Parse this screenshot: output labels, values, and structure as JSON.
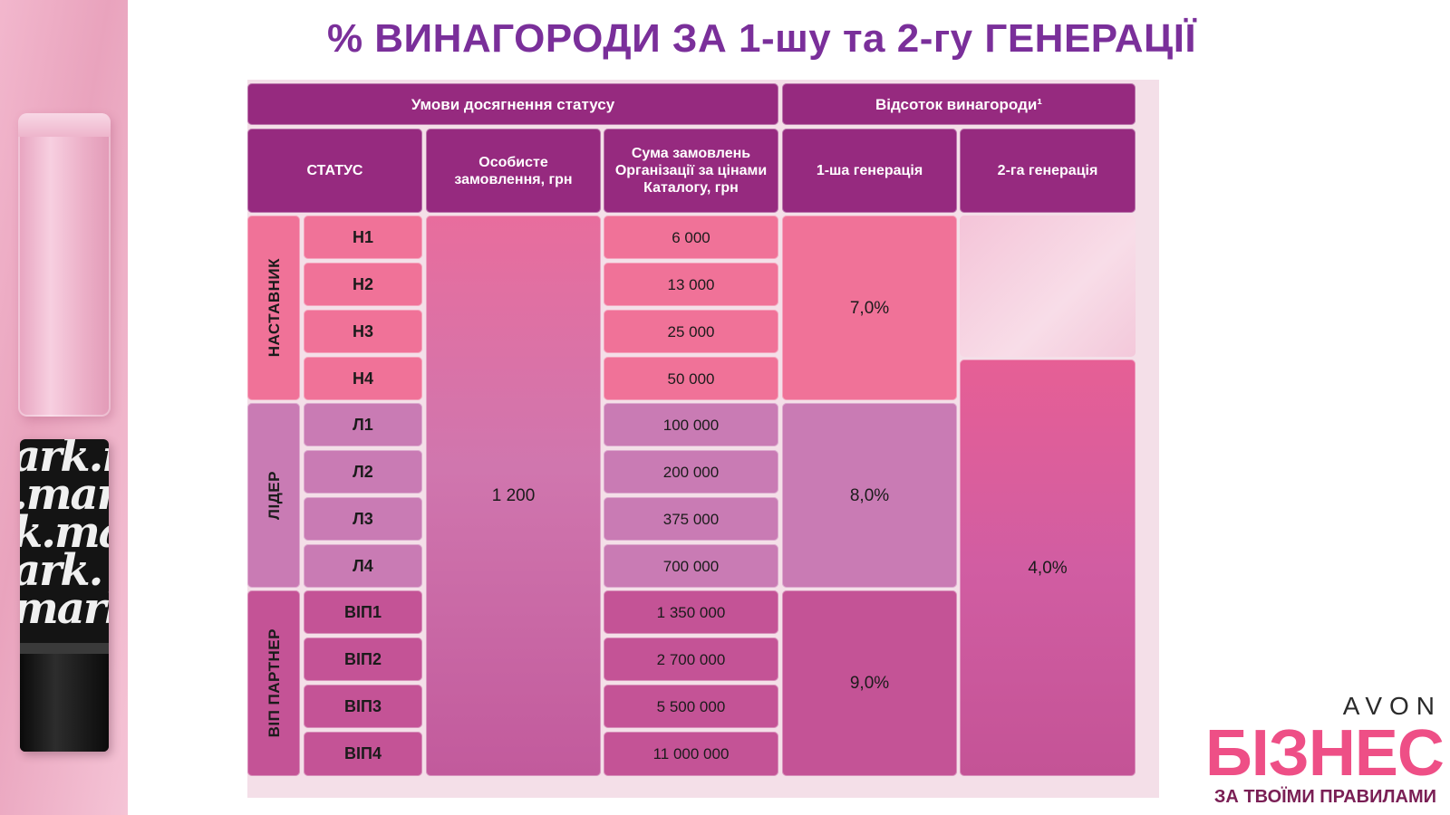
{
  "title": "% ВИНАГОРОДИ ЗА 1-шу та 2-гу ГЕНЕРАЦІЇ",
  "header": {
    "conditions": "Умови досягнення статусу",
    "reward_percent": "Відсоток винагороди¹",
    "status": "СТАТУС",
    "personal_order": "Особисте замовлення, грн",
    "org_sum": "Сума замовлень Організації за цінами Каталогу, грн",
    "gen1": "1-ша генерація",
    "gen2": "2-га генерація"
  },
  "groups": [
    {
      "name": "НАСТАВНИК",
      "gen1": "7,0%",
      "rows": [
        {
          "code": "Н1",
          "sum": "6 000"
        },
        {
          "code": "Н2",
          "sum": "13 000"
        },
        {
          "code": "Н3",
          "sum": "25 000"
        },
        {
          "code": "Н4",
          "sum": "50 000"
        }
      ]
    },
    {
      "name": "ЛІДЕР",
      "gen1": "8,0%",
      "rows": [
        {
          "code": "Л1",
          "sum": "100 000"
        },
        {
          "code": "Л2",
          "sum": "200 000"
        },
        {
          "code": "Л3",
          "sum": "375 000"
        },
        {
          "code": "Л4",
          "sum": "700 000"
        }
      ]
    },
    {
      "name": "ВІП ПАРТНЕР",
      "gen1": "9,0%",
      "rows": [
        {
          "code": "ВІП1",
          "sum": "1 350 000"
        },
        {
          "code": "ВІП2",
          "sum": "2 700 000"
        },
        {
          "code": "ВІП3",
          "sum": "5 500 000"
        },
        {
          "code": "ВІП4",
          "sum": "11 000 000"
        }
      ]
    }
  ],
  "personal_order_value": "1 200",
  "gen2_value": "4,0%",
  "lipstick_text": [
    "ark.m",
    ".mar",
    "k.ma",
    "ark.",
    "mark"
  ],
  "logo": {
    "brand": "AVON",
    "word": "БІЗНЕС",
    "tagline": "ЗА ТВОЇМИ ПРАВИЛАМИ"
  },
  "colors": {
    "title": "#7a2f9a",
    "header": "#962a7f",
    "nastavnyk": "#f07298",
    "lider": "#c97bb4",
    "vip": "#c45396",
    "logo_pink": "#ee4f86"
  }
}
